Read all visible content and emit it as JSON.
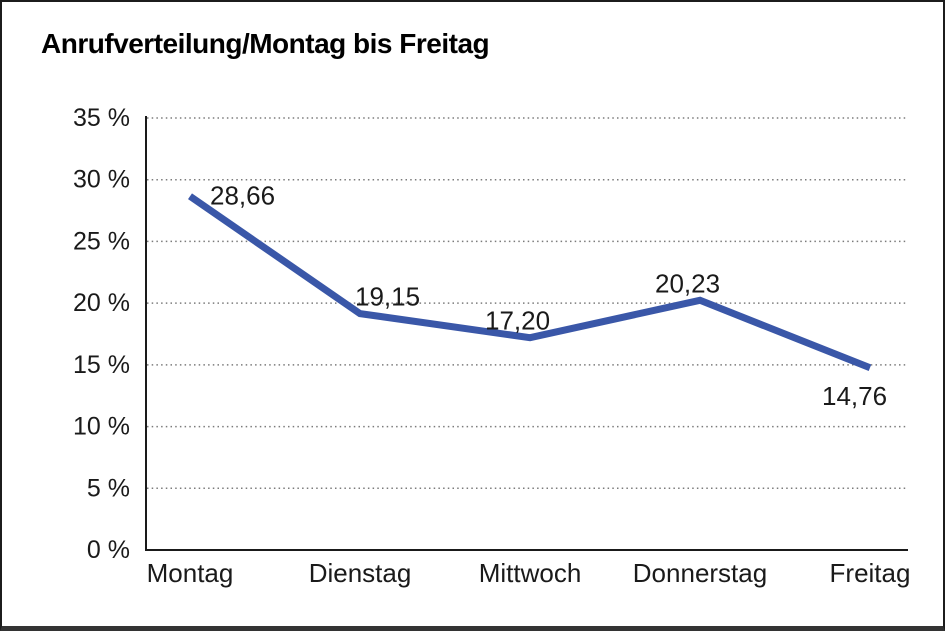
{
  "chart_data": {
    "type": "line",
    "title": "Anrufverteilung/Montag bis Freitag",
    "categories": [
      "Montag",
      "Dienstag",
      "Mittwoch",
      "Donnerstag",
      "Freitag"
    ],
    "series": [
      {
        "name": "Anrufverteilung",
        "values": [
          28.66,
          19.15,
          17.2,
          20.23,
          14.76
        ]
      }
    ],
    "point_labels": [
      "28,66",
      "19,15",
      "17,20",
      "20,23",
      "14,76"
    ],
    "y_ticks": [
      0,
      5,
      10,
      15,
      20,
      25,
      30,
      35
    ],
    "y_tick_labels": [
      "0 %",
      "5 %",
      "10 %",
      "15 %",
      "20 %",
      "25 %",
      "30 %",
      "35 %"
    ],
    "ylim": [
      0,
      35
    ],
    "xlabel": "",
    "ylabel": "",
    "grid": "horizontal-dotted",
    "legend": "none",
    "line_color": "#3A57A8",
    "axis_color": "#1a1a1a",
    "gridline_color": "#7b7b7b",
    "text_color": "#1a1a1a"
  }
}
